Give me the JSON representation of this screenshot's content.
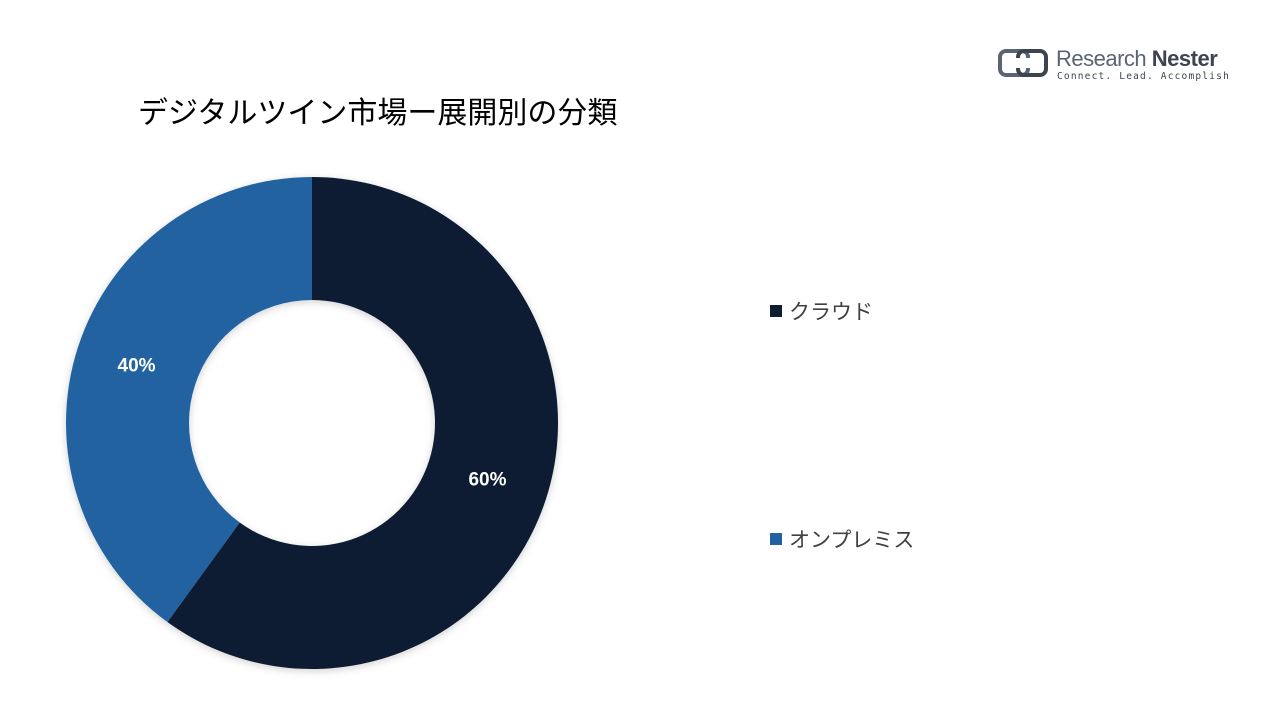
{
  "logo": {
    "brand_light": "Research",
    "brand_bold": "Nester",
    "tagline": "Connect. Lead. Accomplish"
  },
  "chart_data": {
    "type": "pie",
    "variant": "donut",
    "title": "デジタルツイン市場ー展開別の分類",
    "legend_position": "right",
    "series": [
      {
        "name": "クラウド",
        "value": 60,
        "label": "60%",
        "color": "#0c1e30"
      },
      {
        "name": "オンプレミス",
        "value": 40,
        "label": "40%",
        "color": "#2262a0"
      }
    ],
    "start_angle_deg": 0,
    "direction": "clockwise"
  }
}
